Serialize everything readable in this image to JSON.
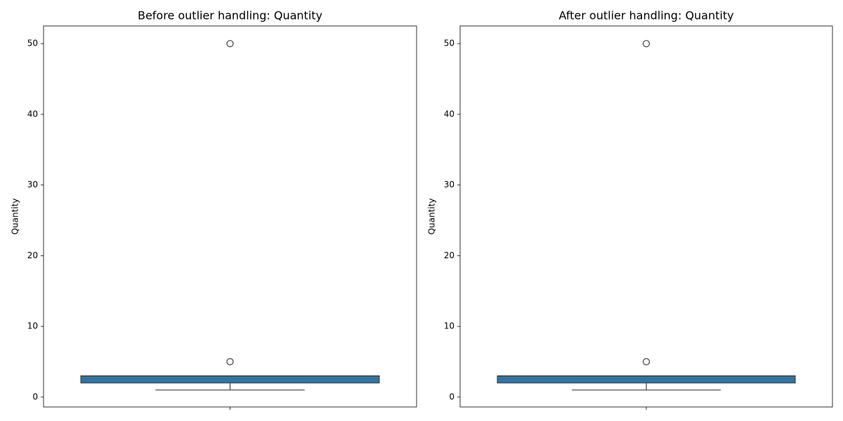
{
  "chart_data": [
    {
      "type": "box",
      "title": "Before outlier handling: Quantity",
      "ylabel": "Quantity",
      "box": {
        "whislo": 1,
        "q1": 2,
        "med": 3,
        "q3": 3,
        "whishi": 3,
        "fliers": [
          5,
          50
        ]
      },
      "color": "#3274a1",
      "ylim": [
        -1.4,
        52.5
      ],
      "yticks": [
        0,
        10,
        20,
        30,
        40,
        50
      ]
    },
    {
      "type": "box",
      "title": "After outlier handling: Quantity",
      "ylabel": "Quantity",
      "box": {
        "whislo": 1,
        "q1": 2,
        "med": 3,
        "q3": 3,
        "whishi": 3,
        "fliers": [
          5,
          50
        ]
      },
      "color": "#3274a1",
      "ylim": [
        -1.4,
        52.5
      ],
      "yticks": [
        0,
        10,
        20,
        30,
        40,
        50
      ]
    }
  ]
}
